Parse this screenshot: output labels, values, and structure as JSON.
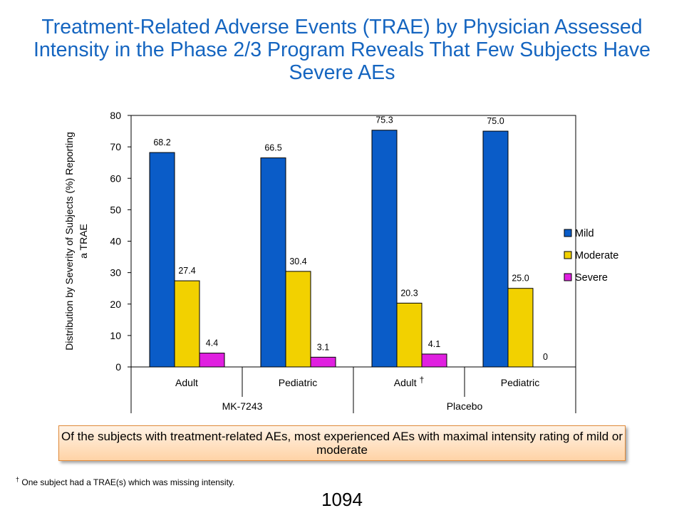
{
  "title": "Treatment-Related Adverse Events (TRAE) by Physician Assessed Intensity in the Phase 2/3 Program Reveals That Few Subjects Have Severe AEs",
  "callout": "Of the subjects with treatment-related AEs, most experienced AEs with maximal intensity rating of mild or moderate",
  "footnote": {
    "mark": "†",
    "text": "One subject had a TRAE(s) which was missing intensity."
  },
  "page_number": "1094",
  "chart_data": {
    "type": "bar",
    "title": "",
    "ylabel": "Distribution by Severity of Subjects (%) Reporting a TRAE",
    "ylim": [
      0,
      80
    ],
    "yticks": [
      0,
      10,
      20,
      30,
      40,
      50,
      60,
      70,
      80
    ],
    "categories": [
      "Adult",
      "Pediatric",
      "Adult †",
      "Pediatric"
    ],
    "groups": [
      {
        "label": "MK-7243",
        "categories": [
          0,
          1
        ]
      },
      {
        "label": "Placebo",
        "categories": [
          2,
          3
        ]
      }
    ],
    "series": [
      {
        "name": "Mild",
        "color": "#0A5CC8",
        "values": [
          68.2,
          66.5,
          75.3,
          75.0
        ],
        "labels": [
          "68.2",
          "66.5",
          "75.3",
          "75.0"
        ]
      },
      {
        "name": "Moderate",
        "color": "#F2D100",
        "values": [
          27.4,
          30.4,
          20.3,
          25.0
        ],
        "labels": [
          "27.4",
          "30.4",
          "20.3",
          "25.0"
        ]
      },
      {
        "name": "Severe",
        "color": "#E020E0",
        "values": [
          4.4,
          3.1,
          4.1,
          0
        ],
        "labels": [
          "4.4",
          "3.1",
          "4.1",
          "0"
        ]
      }
    ],
    "legend_position": "right",
    "grid": false
  }
}
